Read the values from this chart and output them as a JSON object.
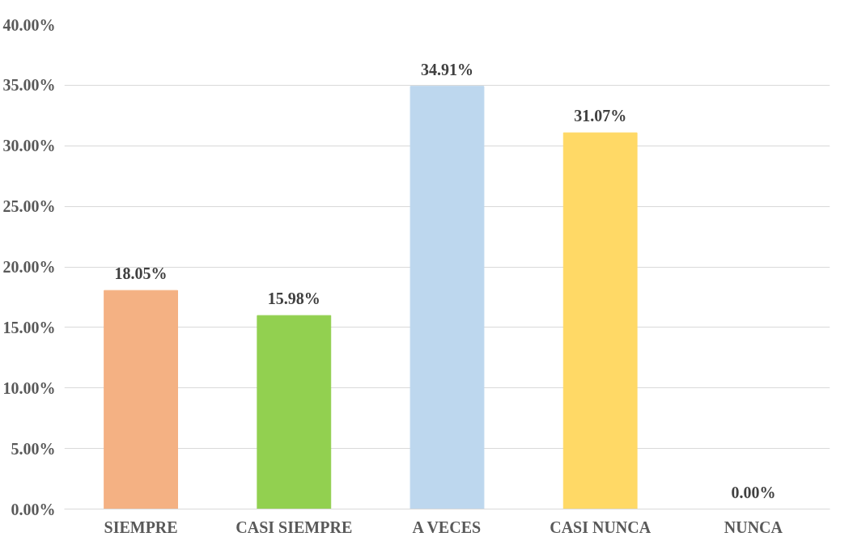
{
  "chart_data": {
    "type": "bar",
    "categories": [
      "SIEMPRE",
      "CASI SIEMPRE",
      "A VECES",
      "CASI NUNCA",
      "NUNCA"
    ],
    "values": [
      18.05,
      15.98,
      34.91,
      31.07,
      0
    ],
    "colors": [
      "#f4b183",
      "#92d050",
      "#bdd7ee",
      "#ffd966",
      "#a9d18e"
    ],
    "value_labels": [
      "18.05%",
      "15.98%",
      "34.91%",
      "31.07%",
      "0.00%"
    ],
    "ylim": [
      0,
      40
    ],
    "yticks": [
      {
        "value": 0,
        "label": "0.00%"
      },
      {
        "value": 5,
        "label": "5.00%"
      },
      {
        "value": 10,
        "label": "10.00%"
      },
      {
        "value": 15,
        "label": "15.00%"
      },
      {
        "value": 20,
        "label": "20.00%"
      },
      {
        "value": 25,
        "label": "25.00%"
      },
      {
        "value": 30,
        "label": "30.00%"
      },
      {
        "value": 35,
        "label": "35.00%"
      },
      {
        "value": 40,
        "label": "40.00%"
      }
    ],
    "grid": "y"
  }
}
